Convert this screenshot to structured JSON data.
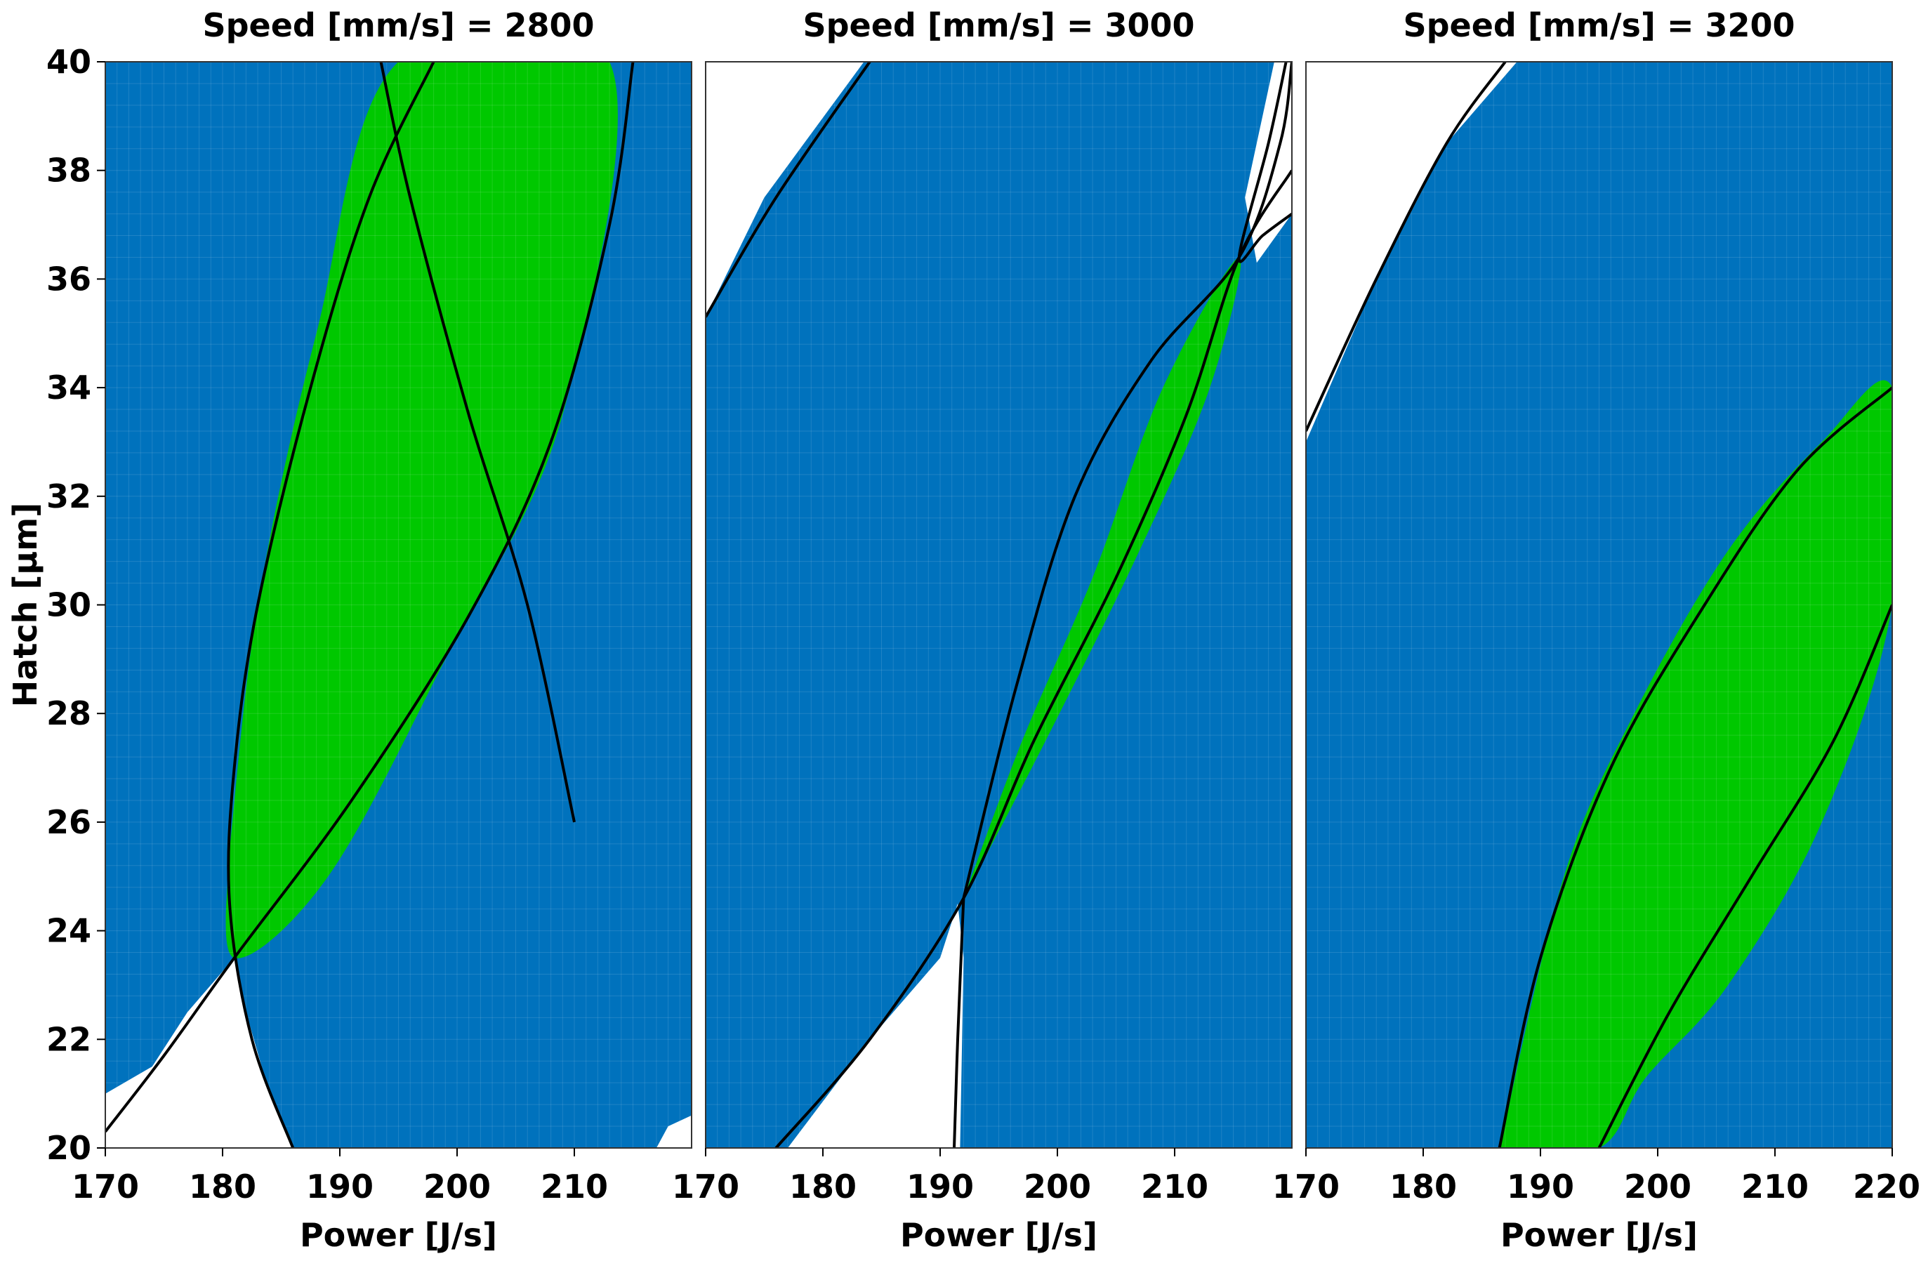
{
  "chart_data": {
    "type": "contour-map",
    "ylabel": "Hatch [µm]",
    "y_ticks": [
      "20",
      "22",
      "24",
      "26",
      "28",
      "30",
      "32",
      "34",
      "36",
      "38",
      "40"
    ],
    "colors": {
      "background_region": "#0072bd",
      "feasible_region": "#00c800",
      "excluded_region": "#ffffff",
      "boundary_line": "#000000",
      "grid": "#dcdcdc"
    },
    "panels": [
      {
        "title": "Speed [mm/s] = 2800",
        "speed": 2800,
        "xlabel": "Power [J/s]",
        "xlim": [
          170,
          220
        ],
        "ylim": [
          20,
          40
        ],
        "x_ticks": [
          "170",
          "180",
          "190",
          "200",
          "210"
        ],
        "regions": {
          "excluded_upper": [],
          "excluded_lower": [
            [
              170,
              20
            ],
            [
              170,
              21
            ],
            [
              174,
              21.5
            ],
            [
              177,
              22.5
            ],
            [
              181,
              23.5
            ],
            [
              182,
              22.5
            ],
            [
              184,
              21
            ],
            [
              186,
              20
            ]
          ],
          "feasible": [
            [
              180.6,
              25.5
            ],
            [
              183,
              30
            ],
            [
              188,
              35
            ],
            [
              195,
              40
            ],
            [
              213,
              40
            ],
            [
              209,
              33.5
            ],
            [
              199,
              29
            ],
            [
              189,
              25
            ],
            [
              181,
              23.5
            ]
          ],
          "bottom_right_notch": [
            [
              217,
              20
            ],
            [
              220,
              20
            ],
            [
              220,
              20.6
            ],
            [
              218,
              20.4
            ]
          ]
        },
        "boundary_curves": [
          [
            [
              170,
              20.3
            ],
            [
              175,
              21.7
            ],
            [
              181,
              23.5
            ],
            [
              191,
              26.4
            ],
            [
              201,
              29.8
            ],
            [
              208,
              33
            ],
            [
              213,
              37
            ],
            [
              215,
              40
            ]
          ],
          [
            [
              186,
              20
            ],
            [
              182.5,
              22
            ],
            [
              180.6,
              24.5
            ],
            [
              181,
              27
            ],
            [
              183,
              30
            ],
            [
              187.5,
              34
            ],
            [
              192.5,
              37.5
            ],
            [
              198,
              40
            ]
          ],
          [
            [
              193.5,
              40
            ],
            [
              196,
              37.5
            ],
            [
              201,
              33.5
            ],
            [
              206,
              30
            ],
            [
              210,
              26
            ]
          ]
        ]
      },
      {
        "title": "Speed [mm/s] = 3000",
        "speed": 3000,
        "xlabel": "Power [J/s]",
        "xlim": [
          170,
          220
        ],
        "ylim": [
          20,
          40
        ],
        "x_ticks": [
          "170",
          "180",
          "190",
          "200",
          "210"
        ],
        "regions": {
          "excluded_upper": [
            [
              170,
              35.3
            ],
            [
              175,
              37.5
            ],
            [
              183.5,
              40
            ],
            [
              170,
              40
            ]
          ],
          "excluded_lower": [
            [
              177,
              20
            ],
            [
              184,
              22
            ],
            [
              190,
              23.5
            ],
            [
              191.5,
              24.5
            ],
            [
              192,
              23.5
            ],
            [
              191.7,
              20
            ]
          ],
          "feasible": [
            [
              192,
              24.6
            ],
            [
              197,
              27.5
            ],
            [
              203,
              30.5
            ],
            [
              209,
              34
            ],
            [
              215.5,
              36.4
            ],
            [
              213,
              34
            ],
            [
              207,
              31
            ],
            [
              199,
              27.5
            ]
          ],
          "right_notch": [
            [
              218.5,
              40
            ],
            [
              220,
              40
            ],
            [
              220,
              37.2
            ],
            [
              217,
              36.3
            ],
            [
              216,
              37.5
            ]
          ]
        },
        "boundary_curves": [
          [
            [
              170,
              35.3
            ],
            [
              176,
              37.5
            ],
            [
              184,
              40
            ]
          ],
          [
            [
              176,
              20
            ],
            [
              184,
              22
            ],
            [
              192,
              24.6
            ],
            [
              198,
              27.5
            ],
            [
              205,
              30.5
            ],
            [
              211,
              33.5
            ],
            [
              215.5,
              36.4
            ],
            [
              220,
              38
            ]
          ],
          [
            [
              192,
              24.6
            ],
            [
              196.5,
              28.5
            ],
            [
              201.5,
              32
            ],
            [
              208,
              34.5
            ],
            [
              215.5,
              36.4
            ],
            [
              219,
              38.5
            ],
            [
              220,
              40
            ]
          ],
          [
            [
              191.2,
              20
            ],
            [
              191.5,
              22
            ],
            [
              192,
              24.6
            ]
          ],
          [
            [
              219.5,
              40
            ],
            [
              218,
              38.5
            ],
            [
              215.5,
              36.4
            ],
            [
              217.5,
              36.8
            ],
            [
              220,
              37.2
            ]
          ]
        ]
      },
      {
        "title": "Speed [mm/s] = 3200",
        "speed": 3200,
        "xlabel": "Power [J/s]",
        "xlim": [
          170,
          220
        ],
        "ylim": [
          20,
          40
        ],
        "x_ticks": [
          "170",
          "180",
          "190",
          "200",
          "210",
          "220"
        ],
        "regions": {
          "excluded_upper": [
            [
              170,
              33
            ],
            [
              176,
              36
            ],
            [
              182,
              38.5
            ],
            [
              188,
              40
            ],
            [
              170,
              40
            ]
          ],
          "excluded_lower": [],
          "feasible": [
            [
              186.5,
              20
            ],
            [
              192,
              25
            ],
            [
              198,
              28
            ],
            [
              206,
              31
            ],
            [
              214,
              33
            ],
            [
              220,
              34
            ],
            [
              220,
              30
            ],
            [
              214,
              26
            ],
            [
              206,
              23
            ],
            [
              199,
              21.3
            ],
            [
              195,
              20
            ]
          ],
          "bottom_right_notch": []
        },
        "boundary_curves": [
          [
            [
              170,
              33.2
            ],
            [
              176,
              36
            ],
            [
              182,
              38.5
            ],
            [
              187,
              40
            ]
          ],
          [
            [
              186.5,
              20
            ],
            [
              190,
              23.5
            ],
            [
              196,
              27
            ],
            [
              204,
              30
            ],
            [
              212,
              32.5
            ],
            [
              220,
              34
            ]
          ],
          [
            [
              195,
              20
            ],
            [
              201,
              22.5
            ],
            [
              208,
              25
            ],
            [
              215,
              27.5
            ],
            [
              220,
              30
            ]
          ]
        ]
      }
    ]
  }
}
